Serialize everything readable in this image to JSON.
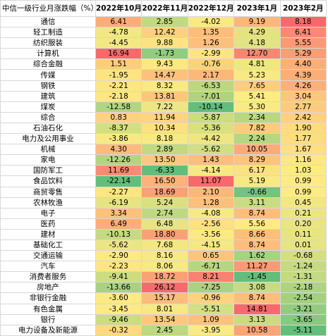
{
  "header": [
    "中信一级行业月涨跌幅（%）",
    "2022年10月",
    "2022年11月",
    "2022年12月",
    "2023年1月",
    "2023年2月"
  ],
  "rows": [
    {
      "name": "通信",
      "v": [
        "6.41",
        "2.85",
        "-4.02",
        "9.19",
        "8.18"
      ]
    },
    {
      "name": "轻工制造",
      "v": [
        "-4.78",
        "12.42",
        "1.35",
        "4.29",
        "6.41"
      ]
    },
    {
      "name": "纺织服装",
      "v": [
        "-4.45",
        "9.88",
        "1.26",
        "4.18",
        "5.55"
      ]
    },
    {
      "name": "计算机",
      "v": [
        "16.94",
        "-1.73",
        "-2.99",
        "12.70",
        "5.29"
      ]
    },
    {
      "name": "综合金融",
      "v": [
        "1.51",
        "9.43",
        "-0.76",
        "4.81",
        "4.40"
      ]
    },
    {
      "name": "传媒",
      "v": [
        "-1.95",
        "14.47",
        "2.17",
        "5.23",
        "4.39"
      ]
    },
    {
      "name": "钢铁",
      "v": [
        "-2.21",
        "8.32",
        "-6.53",
        "7.65",
        "4.26"
      ]
    },
    {
      "name": "建筑",
      "v": [
        "-2.18",
        "13.81",
        "-7.01",
        "5.41",
        "3.04"
      ]
    },
    {
      "name": "煤炭",
      "v": [
        "-12.58",
        "7.22",
        "-10.14",
        "5.30",
        "2.77"
      ]
    },
    {
      "name": "综合",
      "v": [
        "0.83",
        "11.94",
        "-5.87",
        "2.34",
        "2.42"
      ]
    },
    {
      "name": "石油石化",
      "v": [
        "-8.37",
        "10.34",
        "-5.36",
        "7.82",
        "1.90"
      ]
    },
    {
      "name": "电力及公用事业",
      "v": [
        "-3.86",
        "8.18",
        "-4.42",
        "2.24",
        "1.77"
      ]
    },
    {
      "name": "机械",
      "v": [
        "4.30",
        "2.89",
        "-5.62",
        "10.05",
        "1.67"
      ]
    },
    {
      "name": "家电",
      "v": [
        "-12.26",
        "13.50",
        "1.43",
        "8.29",
        "1.16"
      ]
    },
    {
      "name": "国防军工",
      "v": [
        "11.69",
        "-6.33",
        "-4.14",
        "6.17",
        "1.03"
      ]
    },
    {
      "name": "食品饮料",
      "v": [
        "-22.14",
        "16.50",
        "11.07",
        "5.19",
        "0.99"
      ]
    },
    {
      "name": "商贸零售",
      "v": [
        "-2.27",
        "18.69",
        "2.10",
        "-0.66",
        "0.99"
      ]
    },
    {
      "name": "农林牧渔",
      "v": [
        "-6.19",
        "5.24",
        "1.28",
        "3.11",
        "0.45"
      ]
    },
    {
      "name": "电子",
      "v": [
        "3.34",
        "2.74",
        "-4.08",
        "8.74",
        "0.21"
      ]
    },
    {
      "name": "医药",
      "v": [
        "6.49",
        "6.48",
        "-2.56",
        "5.56",
        "0.20"
      ]
    },
    {
      "name": "建材",
      "v": [
        "-10.13",
        "18.80",
        "-3.56",
        "8.66",
        "0.11"
      ]
    },
    {
      "name": "基础化工",
      "v": [
        "-5.62",
        "7.68",
        "-4.15",
        "8.74",
        "0.01"
      ]
    },
    {
      "name": "交通运输",
      "v": [
        "-2.90",
        "8.16",
        "0.65",
        "1.62",
        "-0.68"
      ]
    },
    {
      "name": "汽车",
      "v": [
        "-2.23",
        "8.06",
        "-6.71",
        "11.27",
        "-1.24"
      ]
    },
    {
      "name": "消费者服务",
      "v": [
        "-9.41",
        "18.72",
        "8.21",
        "-1.45",
        "-1.31"
      ]
    },
    {
      "name": "房地产",
      "v": [
        "-13.66",
        "26.12",
        "-7.25",
        "3.08",
        "-2.18"
      ]
    },
    {
      "name": "非银行金融",
      "v": [
        "-3.60",
        "15.17",
        "-0.96",
        "8.74",
        "-2.54"
      ]
    },
    {
      "name": "有色金属",
      "v": [
        "-3.45",
        "8.01",
        "-5.51",
        "14.81",
        "-3.21"
      ]
    },
    {
      "name": "银行",
      "v": [
        "-9.46",
        "13.54",
        "1.09",
        "3.13",
        "-3.65"
      ]
    },
    {
      "name": "电力设备及新能源",
      "v": [
        "-0.32",
        "2.45",
        "-3.95",
        "10.58",
        "-5.11"
      ]
    }
  ],
  "colors": {
    "high": "#f8696b",
    "mid": "#ffeb84",
    "low": "#63be7b"
  }
}
